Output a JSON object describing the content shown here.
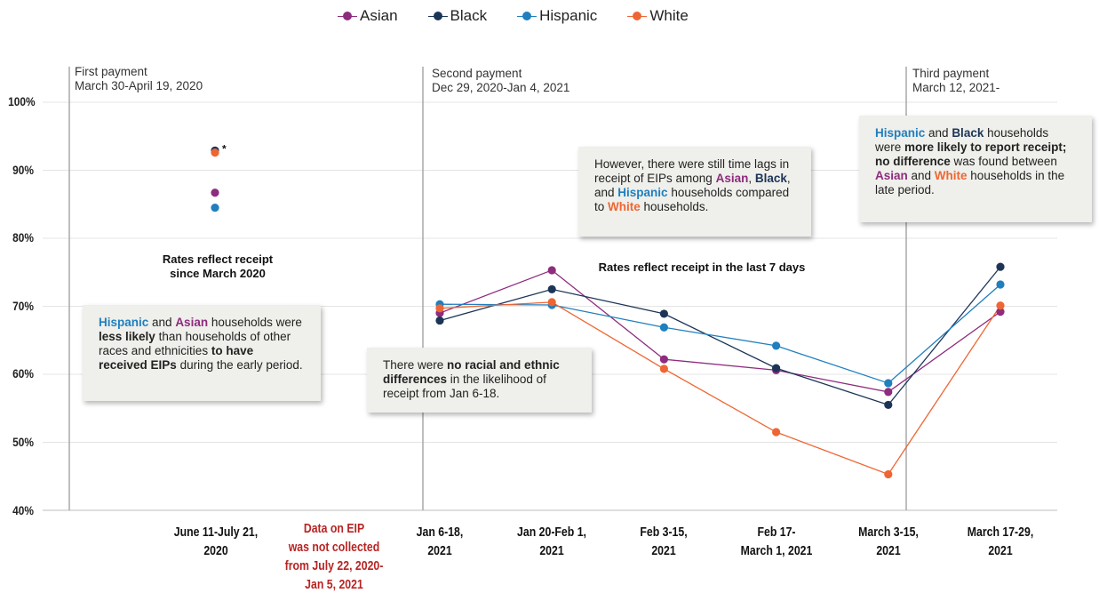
{
  "colors": {
    "asian": "#8e2c7e",
    "black": "#1c3557",
    "hispanic": "#1f7fbf",
    "white": "#ee6633",
    "red_label": "#b82424"
  },
  "legend": [
    {
      "name": "Asian",
      "key": "asian"
    },
    {
      "name": "Black",
      "key": "black"
    },
    {
      "name": "Hispanic",
      "key": "hispanic"
    },
    {
      "name": "White",
      "key": "white"
    }
  ],
  "phases": [
    {
      "title": "First payment",
      "dates": "March 30-April 19, 2020"
    },
    {
      "title": "Second payment",
      "dates": "Dec 29, 2020-Jan 4, 2021"
    },
    {
      "title": "Third payment",
      "dates": "March 12, 2021-"
    }
  ],
  "x_labels": [
    {
      "line1": "June 11-July 21,",
      "line2": "2020"
    },
    {
      "line1": "Jan 6-18,",
      "line2": "2021"
    },
    {
      "line1": "Jan 20-Feb 1,",
      "line2": "2021"
    },
    {
      "line1": "Feb 3-15,",
      "line2": "2021"
    },
    {
      "line1": "Feb 17-",
      "line2": "March 1, 2021"
    },
    {
      "line1": "March 3-15,",
      "line2": "2021"
    },
    {
      "line1": "March 17-29,",
      "line2": "2021"
    }
  ],
  "gap_label": {
    "line1": "Data on EIP",
    "line2": "was not collected",
    "line3": "from July 22, 2020-",
    "line4": "Jan 5, 2021"
  },
  "asterisk": "*",
  "notes": {
    "early_rates": {
      "line1": "Rates reflect receipt",
      "line2": "since March 2020"
    },
    "late_rates": "Rates reflect receipt in the last 7 days"
  },
  "boxes": {
    "early": {
      "p1": "Hispanic",
      "p2": " and ",
      "p3": "Asian",
      "p4": " households were ",
      "p5": "less likely",
      "p6": " than households of other races and ethnicities ",
      "p7": "to have received EIPs",
      "p8": " during the early period."
    },
    "jan": {
      "p1": "There were ",
      "p2": "no racial and ethnic differences",
      "p3": " in the likelihood of receipt from Jan 6-18."
    },
    "lags": {
      "p1": "However, there were still time lags in receipt of EIPs among ",
      "p2": "Asian",
      "p3": ", ",
      "p4": "Black",
      "p5": ", and ",
      "p6": "Hispanic",
      "p7": " households compared to ",
      "p8": "White",
      "p9": " households."
    },
    "late": {
      "p1": "Hispanic",
      "p2": " and ",
      "p3": "Black",
      "p4": " households were ",
      "p5": "more likely to report receipt; no difference",
      "p6": " was found between ",
      "p7": "Asian",
      "p8": " and ",
      "p9": "White",
      "p10": " households in the late period."
    }
  },
  "chart_data": {
    "type": "line",
    "ylim": [
      40,
      100
    ],
    "yticks": [
      "40%",
      "50%",
      "60%",
      "70%",
      "80%",
      "90%",
      "100%"
    ],
    "grid": true,
    "legend_position": "top",
    "early_period": {
      "category": "June 11-July 21, 2020",
      "values": {
        "asian": 86.7,
        "black": 92.9,
        "hispanic": 84.5,
        "white": 92.6
      }
    },
    "late_categories": [
      "Jan 6-18, 2021",
      "Jan 20-Feb 1, 2021",
      "Feb 3-15, 2021",
      "Feb 17-March 1, 2021",
      "March 3-15, 2021",
      "March 17-29, 2021"
    ],
    "series": [
      {
        "name": "Asian",
        "key": "asian",
        "values": [
          69.0,
          75.3,
          62.2,
          60.6,
          57.4,
          69.2
        ]
      },
      {
        "name": "Black",
        "key": "black",
        "values": [
          67.9,
          72.5,
          68.9,
          60.9,
          55.5,
          75.8
        ]
      },
      {
        "name": "Hispanic",
        "key": "hispanic",
        "values": [
          70.3,
          70.2,
          66.9,
          64.2,
          58.7,
          73.2
        ]
      },
      {
        "name": "White",
        "key": "white",
        "values": [
          69.7,
          70.6,
          60.8,
          51.5,
          45.3,
          70.1
        ]
      }
    ]
  }
}
